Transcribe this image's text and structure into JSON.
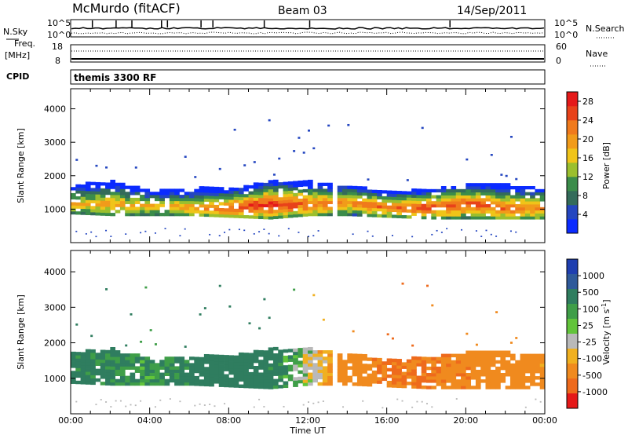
{
  "header": {
    "station": "McMurdo (fitACF)",
    "beam": "Beam 03",
    "date": "14/Sep/2011"
  },
  "strip_panels": {
    "nsky": {
      "label": "N.Sky",
      "right_label": "N.Search",
      "left_ticks": [
        "10^5",
        "10^0"
      ],
      "right_ticks": [
        "10^5",
        "10^0"
      ]
    },
    "freq": {
      "label_line1": "Freq.",
      "label_line2": "[MHz]",
      "right_label": "Nave",
      "left_ticks": [
        "18",
        "8"
      ],
      "right_ticks": [
        "60",
        "0"
      ]
    },
    "cpid": {
      "label": "CPID",
      "text": "themis 3300 RF"
    }
  },
  "colors": {
    "power_scale": [
      "#0b2bff",
      "#2446c0",
      "#336b5a",
      "#3b8c4a",
      "#9bbf2e",
      "#f0c419",
      "#f19b1a",
      "#f07a1c",
      "#e8421a",
      "#e51919"
    ],
    "velocity_scale": [
      "#1f3fb0",
      "#2f5a9a",
      "#2f7d5f",
      "#3f9e48",
      "#62c43a",
      "#b9b9b9",
      "#f0b020",
      "#f08a1e",
      "#ee6a1c",
      "#e51919"
    ]
  },
  "chart_data": [
    {
      "type": "heatmap",
      "panel": "power",
      "xlabel": "Time UT",
      "ylabel": "Slant Range [km]",
      "x_ticks": [
        "00:00",
        "04:00",
        "08:00",
        "12:00",
        "16:00",
        "20:00",
        "00:00"
      ],
      "y_ticks": [
        "1000",
        "2000",
        "3000",
        "4000"
      ],
      "xlim": [
        0,
        24
      ],
      "ylim": [
        0,
        4600
      ],
      "colorbar": {
        "label": "Power [dB]",
        "ticks": [
          "4",
          "8",
          "12",
          "16",
          "20",
          "24",
          "28"
        ],
        "range": [
          0,
          30
        ]
      },
      "echo_band": [
        {
          "t": 0,
          "range_low": 850,
          "range_high": 1700,
          "peak_range": 1100,
          "peak": 18
        },
        {
          "t": 2,
          "range_low": 800,
          "range_high": 1800,
          "peak_range": 1100,
          "peak": 20
        },
        {
          "t": 4,
          "range_low": 800,
          "range_high": 1500,
          "peak_range": 1050,
          "peak": 18
        },
        {
          "t": 6,
          "range_low": 800,
          "range_high": 1600,
          "peak_range": 1000,
          "peak": 20
        },
        {
          "t": 8,
          "range_low": 750,
          "range_high": 1600,
          "peak_range": 1000,
          "peak": 26
        },
        {
          "t": 10,
          "range_low": 700,
          "range_high": 1800,
          "peak_range": 1100,
          "peak": 28
        },
        {
          "t": 12,
          "range_low": 800,
          "range_high": 1800,
          "peak_range": 1100,
          "peak": 24
        },
        {
          "t": 14,
          "range_low": 800,
          "range_high": 1650,
          "peak_range": 1150,
          "peak": 22
        },
        {
          "t": 16,
          "range_low": 750,
          "range_high": 1500,
          "peak_range": 1000,
          "peak": 24
        },
        {
          "t": 18,
          "range_low": 700,
          "range_high": 1550,
          "peak_range": 1000,
          "peak": 26
        },
        {
          "t": 20,
          "range_low": 700,
          "range_high": 1700,
          "peak_range": 1100,
          "peak": 26
        },
        {
          "t": 22,
          "range_low": 700,
          "range_high": 1700,
          "peak_range": 1000,
          "peak": 24
        },
        {
          "t": 24,
          "range_low": 700,
          "range_high": 1600,
          "peak_range": 1000,
          "peak": 22
        }
      ]
    },
    {
      "type": "heatmap",
      "panel": "velocity",
      "xlabel": "Time UT",
      "ylabel": "Slant Range [km]",
      "x_ticks": [
        "00:00",
        "04:00",
        "08:00",
        "12:00",
        "16:00",
        "20:00",
        "00:00"
      ],
      "y_ticks": [
        "1000",
        "2000",
        "3000",
        "4000"
      ],
      "xlim": [
        0,
        24
      ],
      "ylim": [
        0,
        4600
      ],
      "colorbar": {
        "label": "Velocity [m s^-1]",
        "ticks": [
          "1000",
          "500",
          "100",
          "25",
          "-25",
          "-100",
          "-500",
          "-1000"
        ]
      },
      "echo_band": [
        {
          "t": 0,
          "range_low": 850,
          "range_high": 1700,
          "velocity": 150
        },
        {
          "t": 2,
          "range_low": 800,
          "range_high": 1800,
          "velocity": 120
        },
        {
          "t": 4,
          "range_low": 800,
          "range_high": 1500,
          "velocity": 80
        },
        {
          "t": 6,
          "range_low": 800,
          "range_high": 1600,
          "velocity": 150
        },
        {
          "t": 8,
          "range_low": 750,
          "range_high": 1600,
          "velocity": 200
        },
        {
          "t": 10,
          "range_low": 700,
          "range_high": 1800,
          "velocity": 150
        },
        {
          "t": 12,
          "range_low": 800,
          "range_high": 1800,
          "velocity": 0
        },
        {
          "t": 14,
          "range_low": 800,
          "range_high": 1650,
          "velocity": -200
        },
        {
          "t": 16,
          "range_low": 750,
          "range_high": 1500,
          "velocity": -300
        },
        {
          "t": 18,
          "range_low": 700,
          "range_high": 1550,
          "velocity": -300
        },
        {
          "t": 20,
          "range_low": 700,
          "range_high": 1700,
          "velocity": -250
        },
        {
          "t": 22,
          "range_low": 700,
          "range_high": 1700,
          "velocity": -200
        },
        {
          "t": 24,
          "range_low": 700,
          "range_high": 1600,
          "velocity": -150
        }
      ]
    }
  ]
}
